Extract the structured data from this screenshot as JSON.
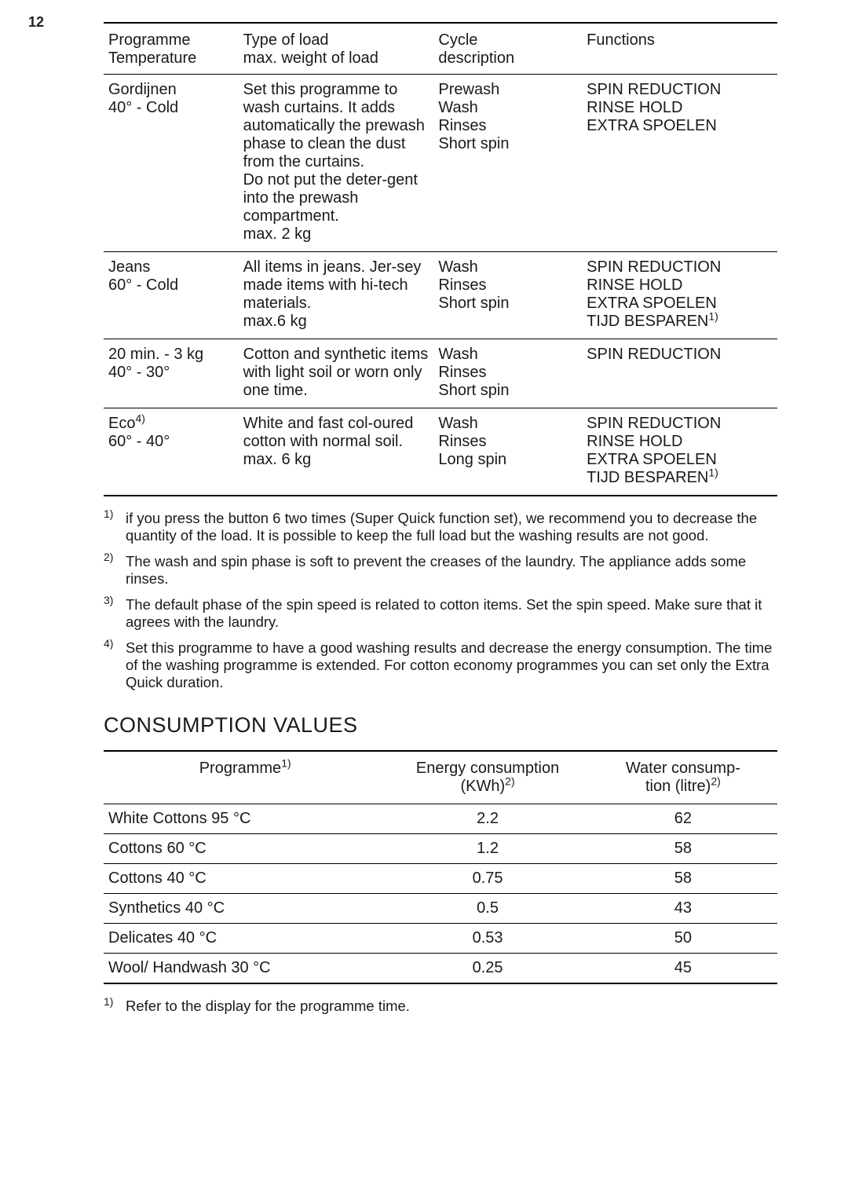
{
  "page_number": "12",
  "table1": {
    "headers": {
      "programme": "Programme\nTemperature",
      "load": "Type of load\nmax. weight of load",
      "cycle": "Cycle\ndescription",
      "functions": "Functions"
    },
    "rows": [
      {
        "prog": "Gordijnen\n40° - Cold",
        "load": "Set this programme to wash curtains. It adds automatically the prewash phase to clean the dust from the curtains.\nDo not put the deter-gent into the prewash compartment.\nmax. 2 kg",
        "cycle": "Prewash\nWash\nRinses\nShort spin",
        "functions": [
          "SPIN REDUCTION",
          "RINSE HOLD",
          "EXTRA SPOELEN"
        ],
        "functions_sup": [
          null,
          null,
          null
        ]
      },
      {
        "prog": "Jeans\n60° - Cold",
        "load": "All items in jeans. Jer-sey made items with hi-tech materials.\nmax.6 kg",
        "cycle": "Wash\nRinses\nShort spin",
        "functions": [
          "SPIN REDUCTION",
          "RINSE HOLD",
          "EXTRA SPOELEN",
          "TIJD BESPAREN"
        ],
        "functions_sup": [
          null,
          null,
          null,
          "1)"
        ]
      },
      {
        "prog": "20 min. - 3 kg\n40° - 30°",
        "load": "Cotton and synthetic items with light soil or worn only one time.",
        "cycle": "Wash\nRinses\nShort spin",
        "functions": [
          "SPIN REDUCTION"
        ],
        "functions_sup": [
          null
        ]
      },
      {
        "prog_pre": "Eco",
        "prog_sup": "4)",
        "prog_post": "\n60° - 40°",
        "load": "White and fast col-oured cotton with normal soil.\nmax. 6 kg",
        "cycle": "Wash\nRinses\nLong spin",
        "functions": [
          "SPIN REDUCTION",
          "RINSE HOLD",
          "EXTRA SPOELEN",
          "TIJD BESPAREN"
        ],
        "functions_sup": [
          null,
          null,
          null,
          "1)"
        ]
      }
    ]
  },
  "footnotes1": [
    {
      "num": "1)",
      "text": "if you press the button 6 two times (Super Quick function set), we recommend you to decrease the quantity of the load. It is possible to keep the full load but the washing results are not good."
    },
    {
      "num": "2)",
      "text": "The wash and spin phase is soft to prevent the creases of the laundry. The appliance adds some rinses."
    },
    {
      "num": "3)",
      "text": "The default phase of the spin speed is related to cotton items. Set the spin speed. Make sure that it agrees with the laundry."
    },
    {
      "num": "4)",
      "text": "Set this programme to have a good washing results and decrease the energy consumption. The time of the washing programme is extended. For cotton economy programmes you can set only the Extra Quick duration."
    }
  ],
  "section_title": "CONSUMPTION VALUES",
  "table2": {
    "headers": {
      "programme_label": "Programme",
      "programme_sup": "1)",
      "energy_label": "Energy consumption\n(KWh)",
      "energy_sup": "2)",
      "water_label": "Water consump-\ntion (litre)",
      "water_sup": "2)"
    },
    "rows": [
      {
        "prog": "White Cottons 95 °C",
        "energy": "2.2",
        "water": "62"
      },
      {
        "prog": "Cottons 60 °C",
        "energy": "1.2",
        "water": "58"
      },
      {
        "prog": "Cottons 40 °C",
        "energy": "0.75",
        "water": "58"
      },
      {
        "prog": "Synthetics 40 °C",
        "energy": "0.5",
        "water": "43"
      },
      {
        "prog": "Delicates 40 °C",
        "energy": "0.53",
        "water": "50"
      },
      {
        "prog": "Wool/ Handwash 30 °C",
        "energy": "0.25",
        "water": "45"
      }
    ]
  },
  "footnotes2": [
    {
      "num": "1)",
      "text": "Refer to the display for the programme time."
    }
  ]
}
